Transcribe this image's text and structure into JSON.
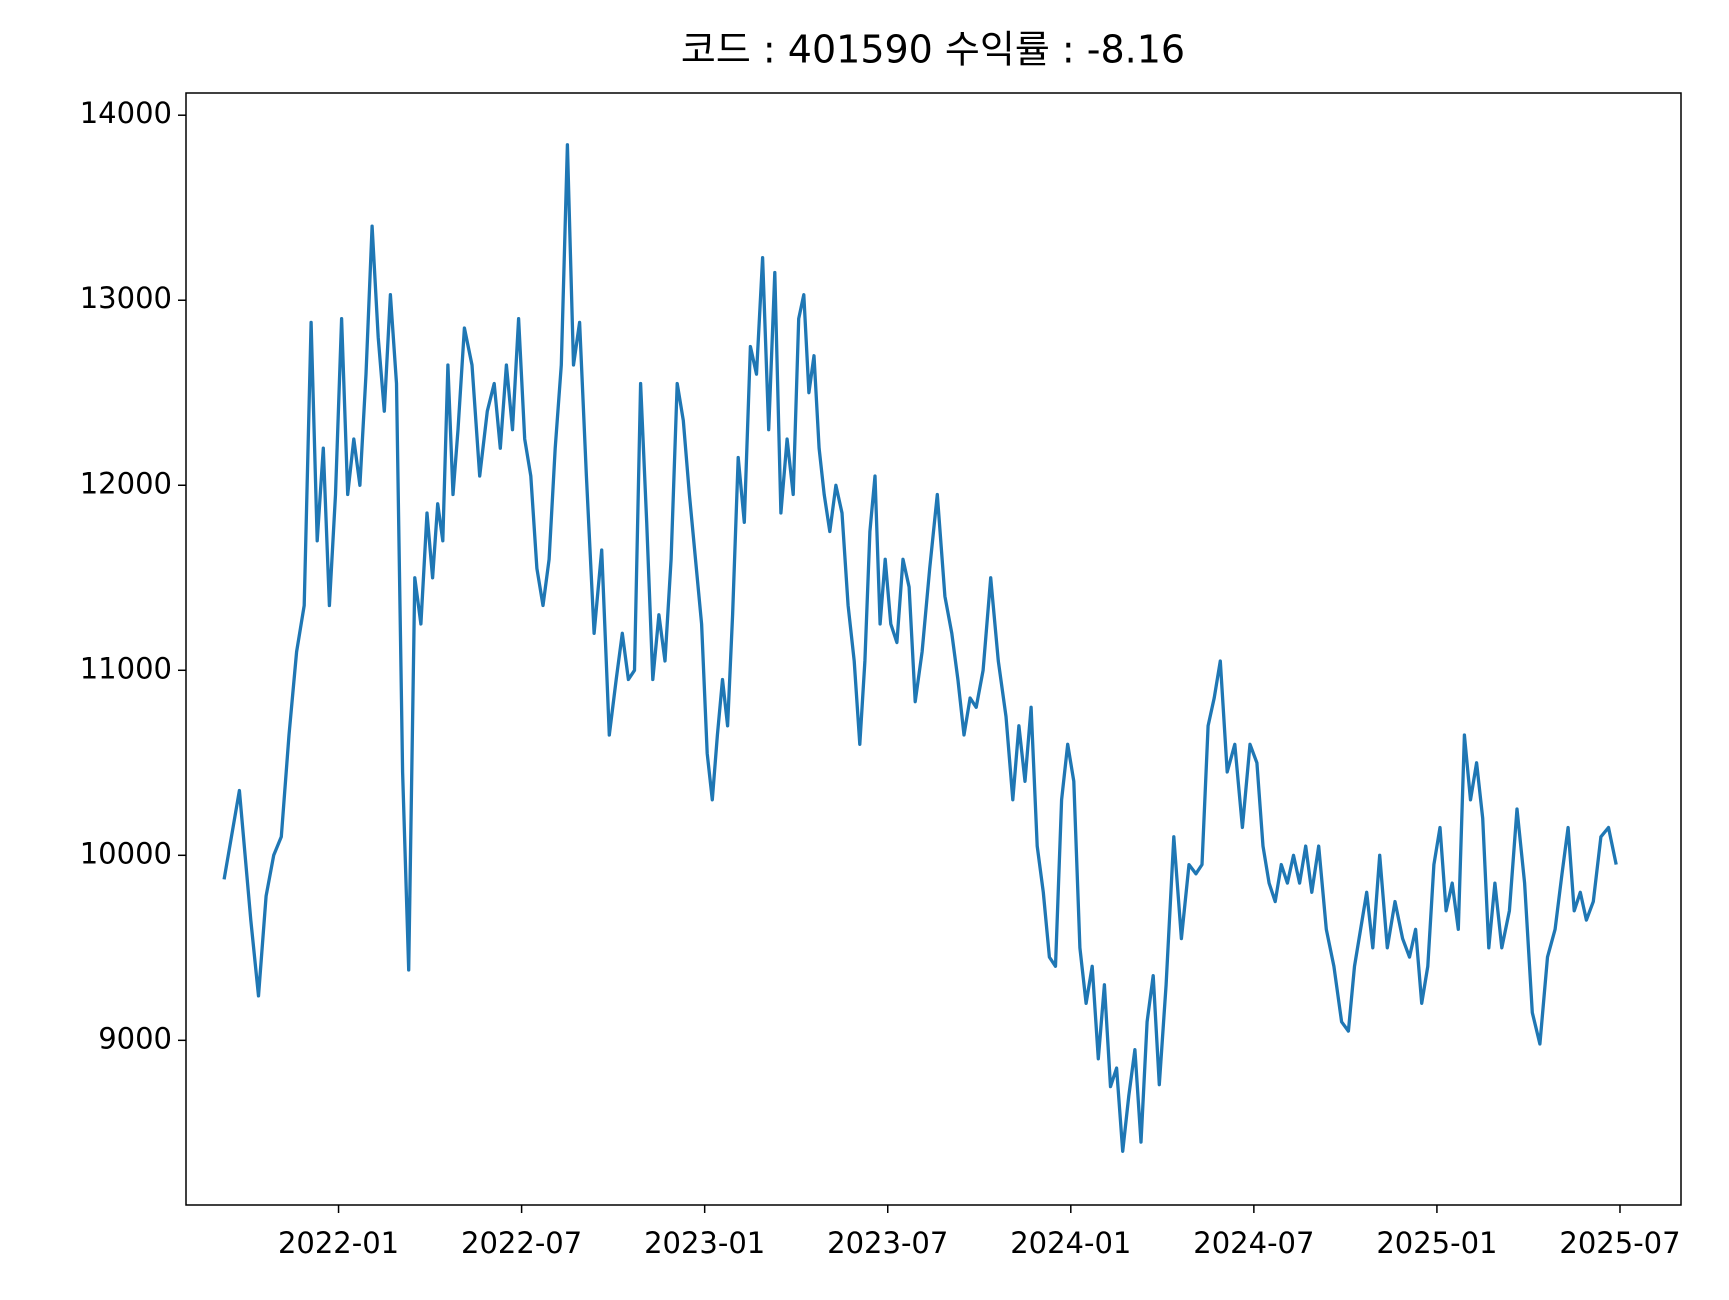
{
  "chart_data": {
    "type": "line",
    "title": "코드 : 401590 수익률 : -8.16",
    "color": "#1f77b4",
    "grid": false,
    "x": [
      "2021-09",
      "2021-09",
      "2021-10",
      "2021-10",
      "2021-10",
      "2021-10",
      "2021-11",
      "2021-11",
      "2021-11",
      "2021-11",
      "2021-12",
      "2021-12",
      "2021-12",
      "2021-12",
      "2021-12",
      "2022-01",
      "2022-01",
      "2022-01",
      "2022-01",
      "2022-01",
      "2022-02",
      "2022-02",
      "2022-02",
      "2022-02",
      "2022-02",
      "2022-03",
      "2022-03",
      "2022-03",
      "2022-03",
      "2022-03",
      "2022-04",
      "2022-04",
      "2022-04",
      "2022-04",
      "2022-04",
      "2022-04",
      "2022-05",
      "2022-05",
      "2022-05",
      "2022-05",
      "2022-06",
      "2022-06",
      "2022-06",
      "2022-06",
      "2022-06",
      "2022-07",
      "2022-07",
      "2022-07",
      "2022-07",
      "2022-07",
      "2022-08",
      "2022-08",
      "2022-08",
      "2022-08",
      "2022-08",
      "2022-09",
      "2022-09",
      "2022-09",
      "2022-09",
      "2022-10",
      "2022-10",
      "2022-10",
      "2022-10",
      "2022-10",
      "2022-11",
      "2022-11",
      "2022-11",
      "2022-11",
      "2022-11",
      "2022-12",
      "2022-12",
      "2022-12",
      "2022-12",
      "2022-12",
      "2023-01",
      "2023-01",
      "2023-01",
      "2023-01",
      "2023-01",
      "2023-01",
      "2023-02",
      "2023-02",
      "2023-02",
      "2023-02",
      "2023-02",
      "2023-03",
      "2023-03",
      "2023-03",
      "2023-03",
      "2023-03",
      "2023-04",
      "2023-04",
      "2023-04",
      "2023-04",
      "2023-04",
      "2023-04",
      "2023-05",
      "2023-05",
      "2023-05",
      "2023-05",
      "2023-05",
      "2023-06",
      "2023-06",
      "2023-06",
      "2023-06",
      "2023-06",
      "2023-06",
      "2023-07",
      "2023-07",
      "2023-07",
      "2023-07",
      "2023-07",
      "2023-08",
      "2023-08",
      "2023-08",
      "2023-08",
      "2023-09",
      "2023-09",
      "2023-09",
      "2023-09",
      "2023-09",
      "2023-10",
      "2023-10",
      "2023-10",
      "2023-10",
      "2023-11",
      "2023-11",
      "2023-11",
      "2023-11",
      "2023-11",
      "2023-12",
      "2023-12",
      "2023-12",
      "2023-12",
      "2023-12",
      "2024-01",
      "2024-01",
      "2024-01",
      "2024-01",
      "2024-01",
      "2024-02",
      "2024-02",
      "2024-02",
      "2024-02",
      "2024-02",
      "2024-03",
      "2024-03",
      "2024-03",
      "2024-03",
      "2024-03",
      "2024-04",
      "2024-04",
      "2024-04",
      "2024-04",
      "2024-05",
      "2024-05",
      "2024-05",
      "2024-05",
      "2024-05",
      "2024-06",
      "2024-06",
      "2024-06",
      "2024-06",
      "2024-07",
      "2024-07",
      "2024-07",
      "2024-07",
      "2024-07",
      "2024-08",
      "2024-08",
      "2024-08",
      "2024-08",
      "2024-08",
      "2024-09",
      "2024-09",
      "2024-09",
      "2024-09",
      "2024-10",
      "2024-10",
      "2024-10",
      "2024-10",
      "2024-10",
      "2024-11",
      "2024-11",
      "2024-11",
      "2024-11",
      "2024-12",
      "2024-12",
      "2024-12",
      "2024-12",
      "2024-12",
      "2025-01",
      "2025-01",
      "2025-01",
      "2025-01",
      "2025-01",
      "2025-02",
      "2025-02",
      "2025-02",
      "2025-02",
      "2025-02",
      "2025-03",
      "2025-03",
      "2025-03",
      "2025-03",
      "2025-04",
      "2025-04",
      "2025-04",
      "2025-04",
      "2025-05",
      "2025-05",
      "2025-05",
      "2025-05",
      "2025-05",
      "2025-06",
      "2025-06",
      "2025-06",
      "2025-06"
    ],
    "values": [
      9870,
      10350,
      9650,
      9240,
      9780,
      10000,
      10100,
      10650,
      11100,
      11350,
      12880,
      11700,
      12200,
      11350,
      11950,
      12900,
      11950,
      12250,
      12000,
      12600,
      13400,
      12800,
      12400,
      13030,
      12550,
      10450,
      9380,
      11500,
      11250,
      11850,
      11500,
      11900,
      11700,
      12650,
      11950,
      12300,
      12850,
      12650,
      12050,
      12400,
      12550,
      12200,
      12650,
      12300,
      12900,
      12250,
      12050,
      11550,
      11350,
      11600,
      12200,
      12650,
      13840,
      12650,
      12880,
      12050,
      11200,
      11650,
      10650,
      10950,
      11200,
      10950,
      11000,
      12550,
      11800,
      10950,
      11300,
      11050,
      11600,
      12550,
      12350,
      11950,
      11600,
      11250,
      10550,
      10300,
      10650,
      10950,
      10700,
      11300,
      12150,
      11800,
      12750,
      12600,
      13230,
      12300,
      13150,
      11850,
      12250,
      11950,
      12900,
      13030,
      12500,
      12700,
      12200,
      11950,
      11750,
      12000,
      11850,
      11350,
      11050,
      10600,
      11050,
      11750,
      12050,
      11250,
      11600,
      11250,
      11150,
      11600,
      11450,
      10830,
      11100,
      11550,
      11950,
      11400,
      11200,
      10950,
      10650,
      10850,
      10800,
      11000,
      11500,
      11050,
      10750,
      10300,
      10700,
      10400,
      10800,
      10050,
      9800,
      9450,
      9400,
      10300,
      10600,
      10400,
      9500,
      9200,
      9400,
      8900,
      9300,
      8750,
      8850,
      8400,
      8700,
      8950,
      8450,
      9100,
      9350,
      8760,
      9300,
      10100,
      9550,
      9950,
      9900,
      9950,
      10700,
      10850,
      11050,
      10450,
      10600,
      10150,
      10600,
      10500,
      10050,
      9850,
      9750,
      9950,
      9850,
      10000,
      9850,
      10050,
      9800,
      10050,
      9600,
      9400,
      9100,
      9050,
      9400,
      9600,
      9800,
      9500,
      10000,
      9500,
      9750,
      9550,
      9450,
      9600,
      9200,
      9400,
      9950,
      10150,
      9700,
      9850,
      9600,
      10650,
      10300,
      10500,
      10200,
      9500,
      9850,
      9500,
      9700,
      10250,
      9850,
      9150,
      8980,
      9450,
      9600,
      9900,
      10150,
      9700,
      9800,
      9650,
      9750,
      10100,
      10150,
      9950
    ],
    "xlim": [
      "2021-08",
      "2025-09"
    ],
    "xticks": [
      "2022-01",
      "2022-07",
      "2023-01",
      "2023-07",
      "2024-01",
      "2024-07",
      "2025-01",
      "2025-07"
    ],
    "ylim": [
      8110,
      14120
    ],
    "yticks": [
      9000,
      10000,
      11000,
      12000,
      13000,
      14000
    ]
  }
}
